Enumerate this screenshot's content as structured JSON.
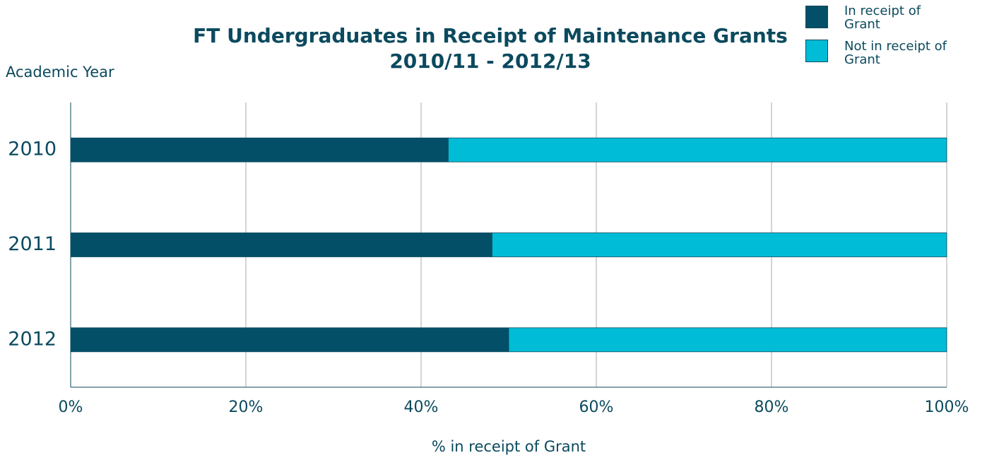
{
  "chart_data": {
    "type": "stacked-barh",
    "title": "FT Undergraduates in Receipt of Maintenance Grants",
    "subtitle": "2010/11 - 2012/13",
    "y_label": "Academic Year",
    "x_label": "% in receipt of Grant",
    "categories": [
      "2010",
      "2011",
      "2012"
    ],
    "series": [
      {
        "name": "In receipt of Grant",
        "color": "#024f67",
        "values": [
          43.1,
          48.1,
          50
        ]
      },
      {
        "name": "Not in receipt of Grant",
        "color": "#00bcd6",
        "values": [
          56.9,
          51.9,
          50
        ]
      }
    ],
    "xlim": [
      0,
      100
    ],
    "xticks": [
      {
        "value": 0,
        "label": "0%"
      },
      {
        "value": 20,
        "label": "20%"
      },
      {
        "value": 40,
        "label": "40%"
      },
      {
        "value": 60,
        "label": "60%"
      },
      {
        "value": 80,
        "label": "80%"
      },
      {
        "value": 100,
        "label": "100%"
      }
    ],
    "grid": true,
    "legend": "top-right"
  }
}
